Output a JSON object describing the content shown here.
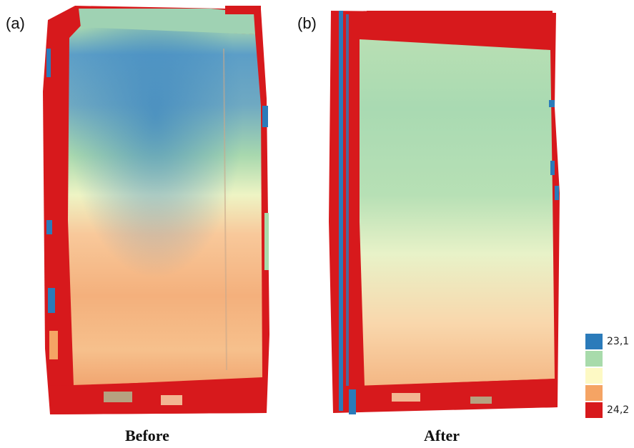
{
  "panels": [
    {
      "letter": "(a)",
      "caption": "Before"
    },
    {
      "letter": "(b)",
      "caption": "After"
    }
  ],
  "legend": {
    "min_label": "23,1",
    "max_label": "24,2",
    "classes": [
      {
        "color": "#2b7bba"
      },
      {
        "color": "#a8dbab"
      },
      {
        "color": "#fdf9c4"
      },
      {
        "color": "#f5a464"
      },
      {
        "color": "#d7191c"
      }
    ]
  }
}
